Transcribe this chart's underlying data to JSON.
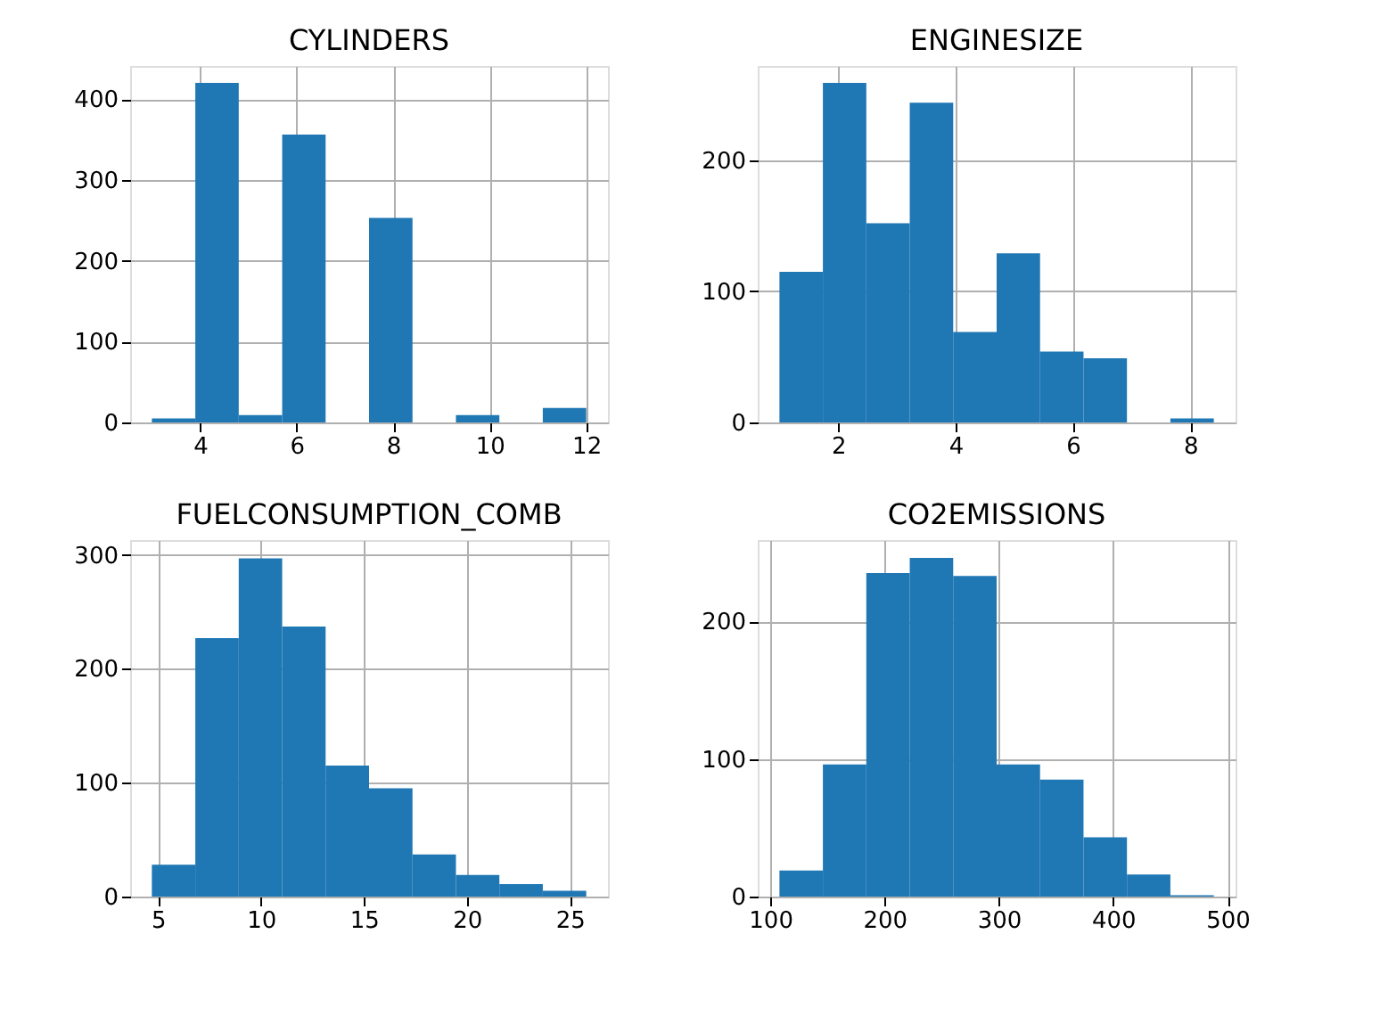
{
  "chart_data": [
    {
      "type": "histogram",
      "title": "CYLINDERS",
      "bins": [
        3,
        3.9,
        4.8,
        5.7,
        6.6,
        7.5,
        8.4,
        9.3,
        10.2,
        11.1,
        12
      ],
      "values": [
        5,
        420,
        9,
        356,
        0,
        253,
        0,
        9,
        0,
        18
      ],
      "color": "#1f77b4",
      "xlim": [
        2.55,
        12.45
      ],
      "ylim": [
        0,
        441
      ],
      "xticks": [
        4,
        6,
        8,
        10,
        12
      ],
      "yticks": [
        0,
        100,
        200,
        300,
        400
      ],
      "grid": true
    },
    {
      "type": "histogram",
      "title": "ENGINESIZE",
      "bins": [
        1,
        1.74,
        2.48,
        3.22,
        3.96,
        4.7,
        5.44,
        6.18,
        6.92,
        7.66,
        8.4
      ],
      "values": [
        115,
        259,
        152,
        244,
        69,
        129,
        54,
        49,
        0,
        3
      ],
      "color": "#1f77b4",
      "xlim": [
        0.63,
        8.77
      ],
      "ylim": [
        0,
        272
      ],
      "xticks": [
        2,
        4,
        6,
        8
      ],
      "yticks": [
        0,
        100,
        200
      ],
      "grid": true
    },
    {
      "type": "histogram",
      "title": "FUELCONSUMPTION_COMB",
      "bins": [
        4.7,
        6.81,
        8.92,
        11.03,
        13.14,
        15.25,
        17.36,
        19.47,
        21.58,
        23.69,
        25.8
      ],
      "values": [
        28,
        227,
        297,
        237,
        115,
        95,
        37,
        19,
        11,
        5
      ],
      "color": "#1f77b4",
      "xlim": [
        3.645,
        26.855
      ],
      "ylim": [
        0,
        313
      ],
      "xticks": [
        5,
        10,
        15,
        20,
        25
      ],
      "yticks": [
        0,
        100,
        200,
        300
      ],
      "grid": true
    },
    {
      "type": "histogram",
      "title": "CO2EMISSIONS",
      "bins": [
        108,
        146,
        184,
        222,
        260,
        298,
        336,
        374,
        412,
        450,
        488
      ],
      "values": [
        19,
        96,
        235,
        246,
        233,
        96,
        85,
        43,
        16,
        1
      ],
      "color": "#1f77b4",
      "xlim": [
        89,
        507
      ],
      "ylim": [
        0,
        259
      ],
      "xticks": [
        100,
        200,
        300,
        400,
        500
      ],
      "yticks": [
        0,
        100,
        200
      ],
      "grid": true
    }
  ]
}
